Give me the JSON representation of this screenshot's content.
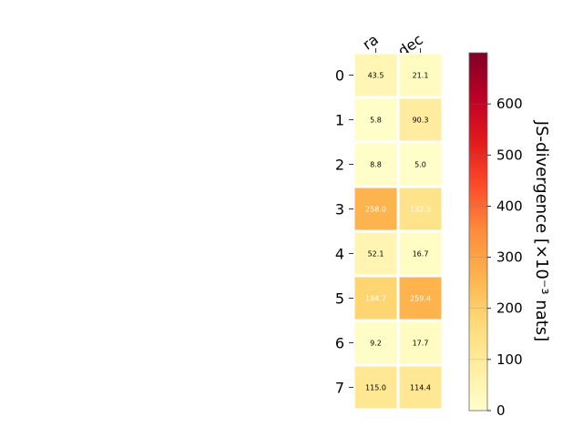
{
  "chart_data": {
    "type": "heatmap",
    "columns": [
      "ra",
      "dec"
    ],
    "rows": [
      "0",
      "1",
      "2",
      "3",
      "4",
      "5",
      "6",
      "7"
    ],
    "values": [
      [
        43.5,
        21.1
      ],
      [
        5.8,
        90.3
      ],
      [
        8.8,
        5.0
      ],
      [
        258.0,
        132.3
      ],
      [
        52.1,
        16.7
      ],
      [
        184.7,
        259.4
      ],
      [
        9.2,
        17.7
      ],
      [
        115.0,
        114.4
      ]
    ],
    "value_labels": [
      [
        "43.5",
        "21.1"
      ],
      [
        "5.8",
        "90.3"
      ],
      [
        "8.8",
        "5.0"
      ],
      [
        "258.0",
        "132.3"
      ],
      [
        "52.1",
        "16.7"
      ],
      [
        "184.7",
        "259.4"
      ],
      [
        "9.2",
        "17.7"
      ],
      [
        "115.0",
        "114.4"
      ]
    ],
    "colorbar": {
      "label": "JS-divergence [×10⁻³ nats]",
      "range": [
        0,
        700
      ],
      "ticks": [
        "0",
        "100",
        "200",
        "300",
        "400",
        "500",
        "600"
      ],
      "colormap": "YlOrRd"
    }
  }
}
